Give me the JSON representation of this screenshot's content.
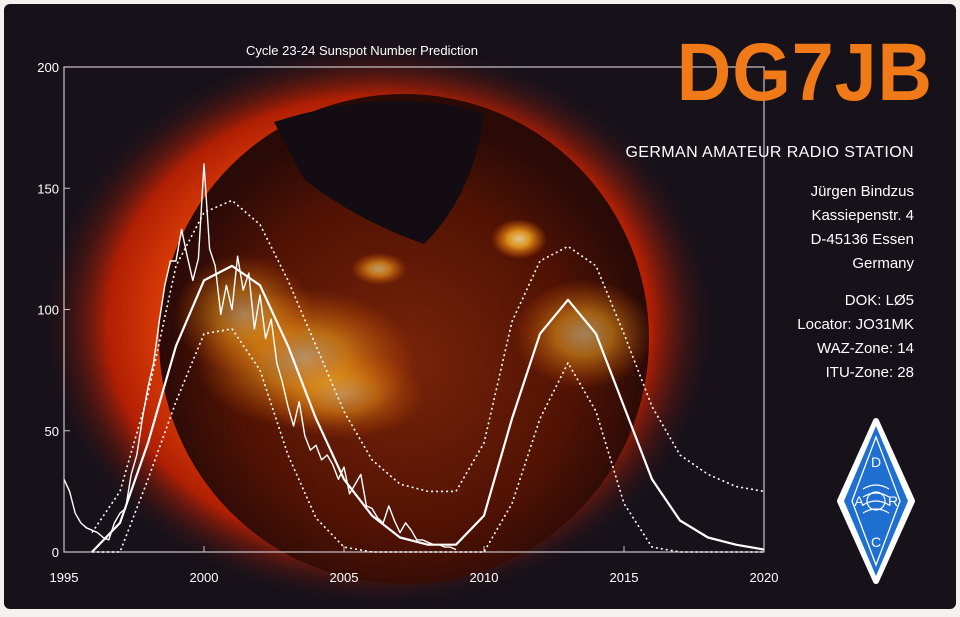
{
  "card": {
    "callsign": "DG7JB",
    "subtitle": "GERMAN AMATEUR RADIO STATION",
    "address": [
      "Jürgen Bindzus",
      "Kassiepenstr. 4",
      "D-45136 Essen",
      "Germany"
    ],
    "station_info": [
      "DOK: LØ5",
      "Locator: JO31MK",
      "WAZ-Zone: 14",
      "ITU-Zone: 28"
    ],
    "logo": {
      "icon": "darc-diamond-logo",
      "letters": [
        "D",
        "A",
        "R",
        "C"
      ]
    },
    "colors": {
      "background": "#17111a",
      "callsign": "#f07a18",
      "text": "#ffffff",
      "logo": "#1f6fd1"
    }
  },
  "chart_data": {
    "type": "line",
    "title": "Cycle 23-24 Sunspot Number Prediction",
    "xlabel": "",
    "ylabel": "",
    "xlim": [
      1995,
      2020
    ],
    "ylim": [
      0,
      200
    ],
    "x_ticks": [
      1995,
      2000,
      2005,
      2010,
      2015,
      2020
    ],
    "y_ticks": [
      0,
      50,
      100,
      150,
      200
    ],
    "grid": false,
    "series": [
      {
        "style": "solid-noisy",
        "x": [
          1995.0,
          1995.2,
          1995.4,
          1995.6,
          1995.8,
          1996.0,
          1996.2,
          1996.4,
          1996.6,
          1996.8,
          1997.0,
          1997.2,
          1997.4,
          1997.6,
          1997.8,
          1998.0,
          1998.2,
          1998.4,
          1998.6,
          1998.8,
          1999.0,
          1999.2,
          1999.4,
          1999.6,
          1999.8,
          2000.0,
          2000.2,
          2000.4,
          2000.6,
          2000.8,
          2001.0,
          2001.2,
          2001.4,
          2001.6,
          2001.8,
          2002.0,
          2002.2,
          2002.4,
          2002.6,
          2002.8,
          2003.0,
          2003.2,
          2003.4,
          2003.6,
          2003.8,
          2004.0,
          2004.2,
          2004.4,
          2004.6,
          2004.8,
          2005.0,
          2005.2,
          2005.4,
          2005.6,
          2005.8,
          2006.0,
          2006.2,
          2006.4,
          2006.6,
          2006.8,
          2007.0,
          2007.2,
          2007.4,
          2007.6,
          2007.8,
          2008.0,
          2008.2,
          2008.4,
          2008.6,
          2008.8,
          2009.0
        ],
        "values": [
          30,
          25,
          16,
          12,
          10,
          9,
          8,
          6,
          5,
          12,
          16,
          18,
          32,
          40,
          55,
          68,
          78,
          95,
          110,
          120,
          120,
          133,
          122,
          112,
          121,
          160,
          125,
          118,
          98,
          110,
          100,
          122,
          108,
          115,
          92,
          106,
          88,
          96,
          78,
          70,
          60,
          52,
          62,
          48,
          42,
          44,
          38,
          40,
          36,
          30,
          35,
          24,
          28,
          32,
          19,
          18,
          14,
          12,
          19,
          13,
          8,
          12,
          9,
          5,
          5,
          4,
          3,
          3,
          2,
          2,
          1
        ]
      },
      {
        "style": "solid",
        "x": [
          1996,
          1997,
          1998,
          1999,
          2000,
          2001,
          2002,
          2003,
          2004,
          2005,
          2006,
          2007,
          2008,
          2009,
          2010,
          2011,
          2012,
          2013,
          2014,
          2015,
          2016,
          2017,
          2018,
          2019,
          2020
        ],
        "values": [
          0,
          12,
          45,
          85,
          112,
          118,
          110,
          85,
          55,
          30,
          15,
          6,
          3,
          3,
          15,
          55,
          90,
          104,
          90,
          60,
          30,
          13,
          6,
          3,
          1
        ]
      },
      {
        "style": "dotted",
        "x": [
          1996,
          1997,
          1998,
          1999,
          2000,
          2001,
          2002,
          2003,
          2004,
          2005,
          2006,
          2007,
          2008,
          2009,
          2010,
          2011,
          2012,
          2013,
          2014,
          2015,
          2016,
          2017,
          2018,
          2019,
          2020
        ],
        "values": [
          8,
          25,
          65,
          118,
          140,
          145,
          135,
          112,
          85,
          58,
          38,
          28,
          25,
          25,
          45,
          95,
          120,
          126,
          118,
          90,
          60,
          40,
          32,
          27,
          25
        ]
      },
      {
        "style": "dotted",
        "x": [
          1996,
          1997,
          1998,
          1999,
          2000,
          2001,
          2002,
          2003,
          2004,
          2005,
          2006,
          2007,
          2008,
          2009,
          2010,
          2011,
          2012,
          2013,
          2014,
          2015,
          2016,
          2017,
          2018,
          2019,
          2020
        ],
        "values": [
          0,
          0,
          30,
          62,
          90,
          92,
          75,
          40,
          14,
          2,
          0,
          0,
          0,
          0,
          0,
          20,
          55,
          78,
          58,
          20,
          2,
          0,
          0,
          0,
          0
        ]
      }
    ]
  }
}
